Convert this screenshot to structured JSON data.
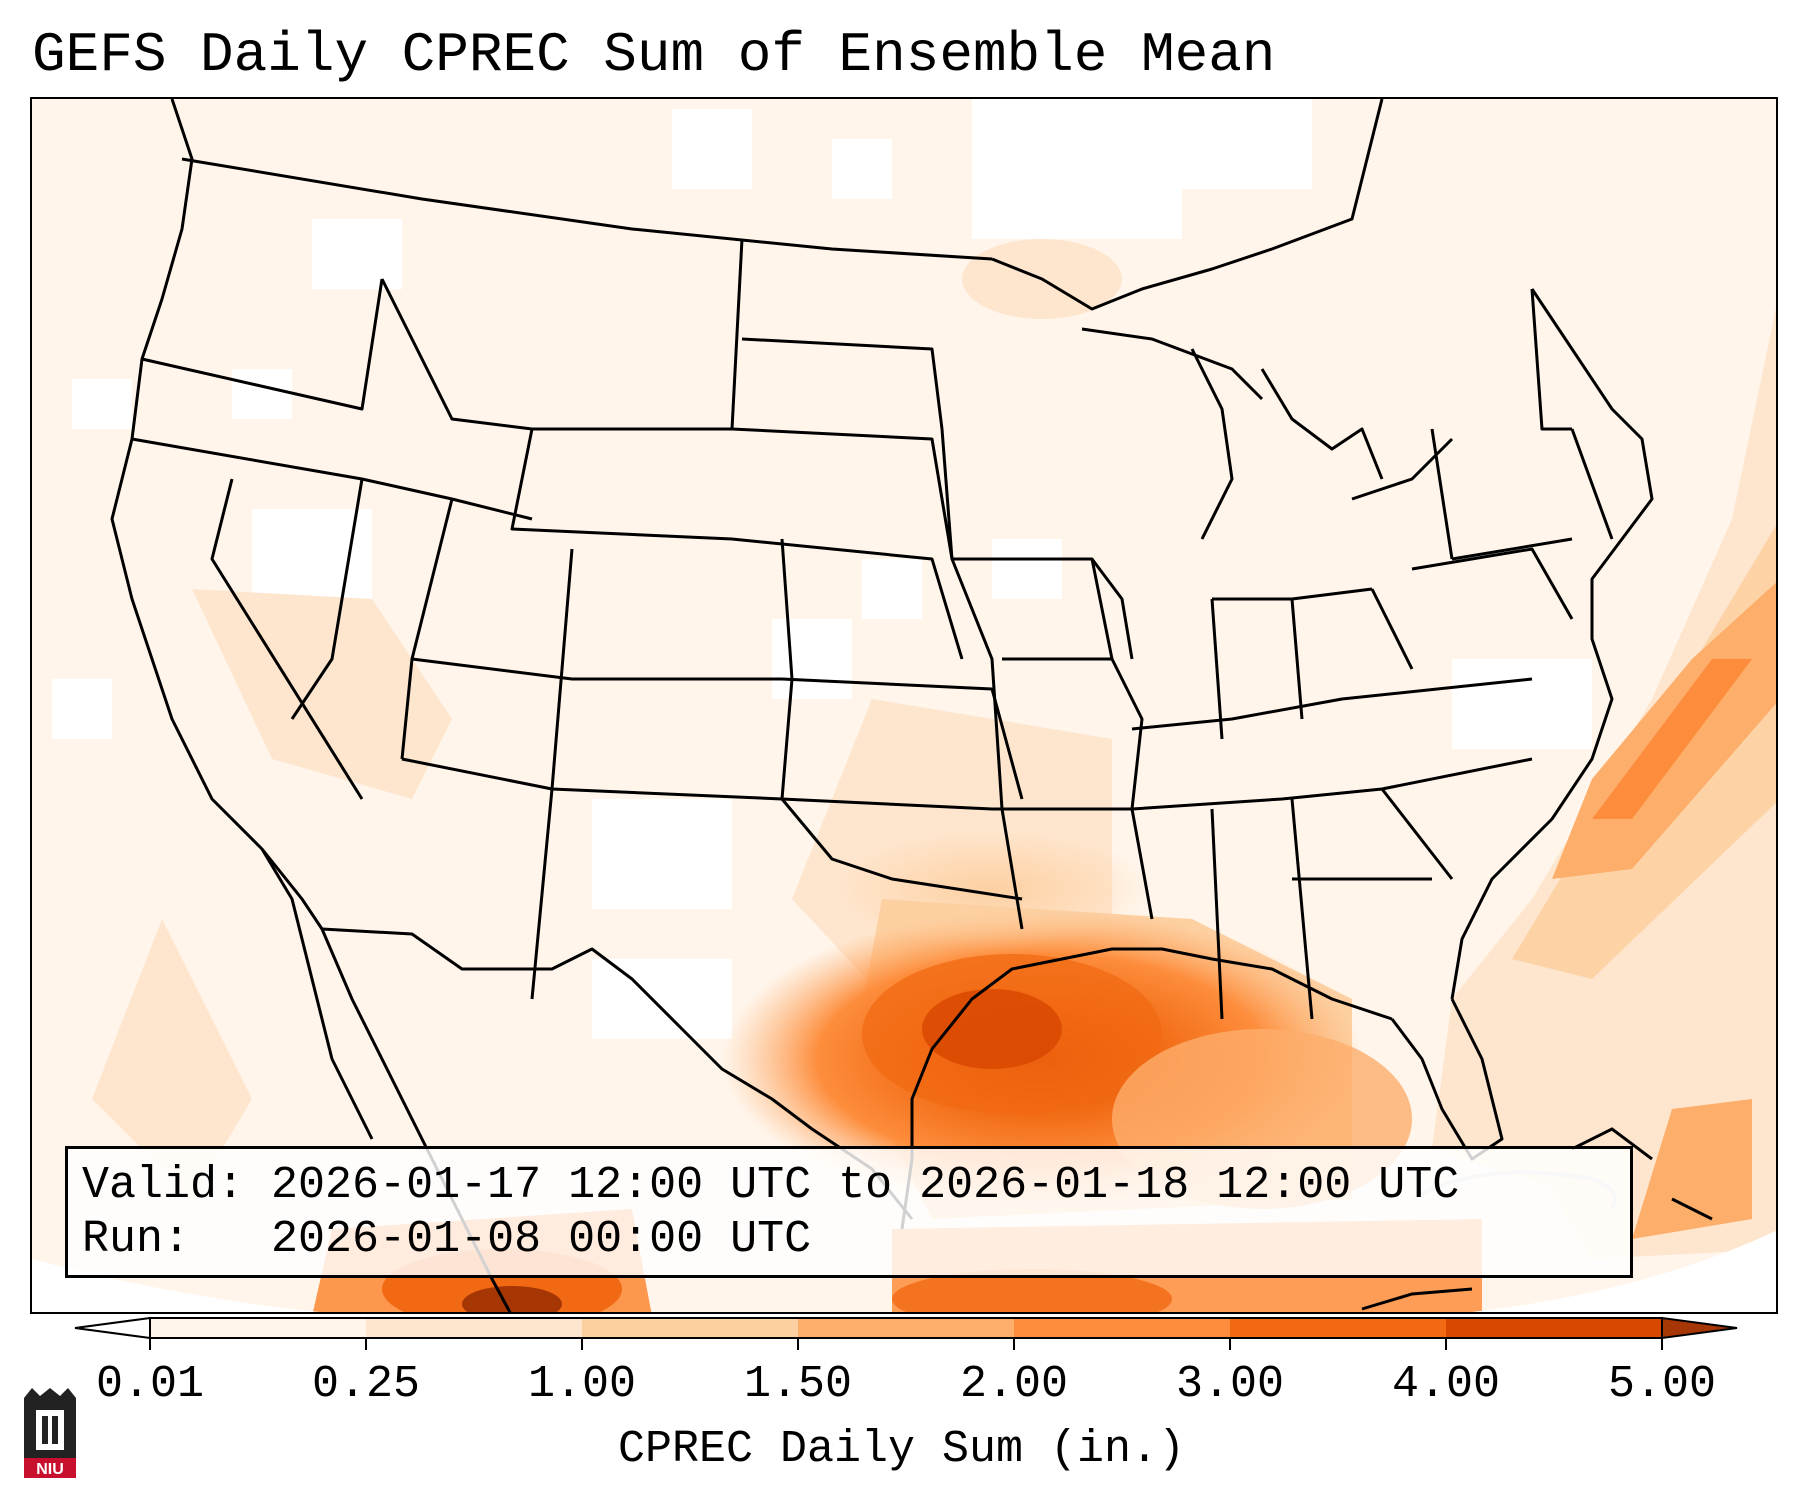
{
  "title": "GEFS Daily CPREC Sum of Ensemble Mean",
  "info": {
    "valid_label": "Valid:",
    "valid_value": "2026-01-17 12:00 UTC to 2026-01-18 12:00 UTC",
    "run_label": "Run:",
    "run_value": "2026-01-08 00:00 UTC"
  },
  "colorbar": {
    "label": "CPREC Daily Sum (in.)",
    "ticks": [
      "0.01",
      "0.25",
      "1.00",
      "1.50",
      "2.00",
      "3.00",
      "4.00",
      "5.00"
    ],
    "colors": [
      "#fff5eb",
      "#fee6ce",
      "#fdd0a2",
      "#fdae6b",
      "#fd8d3c",
      "#f16913",
      "#d94801"
    ],
    "under_color": "#ffffff",
    "over_color": "#a63603"
  },
  "logo": {
    "text": "NIU",
    "color": "#c8102e"
  }
}
